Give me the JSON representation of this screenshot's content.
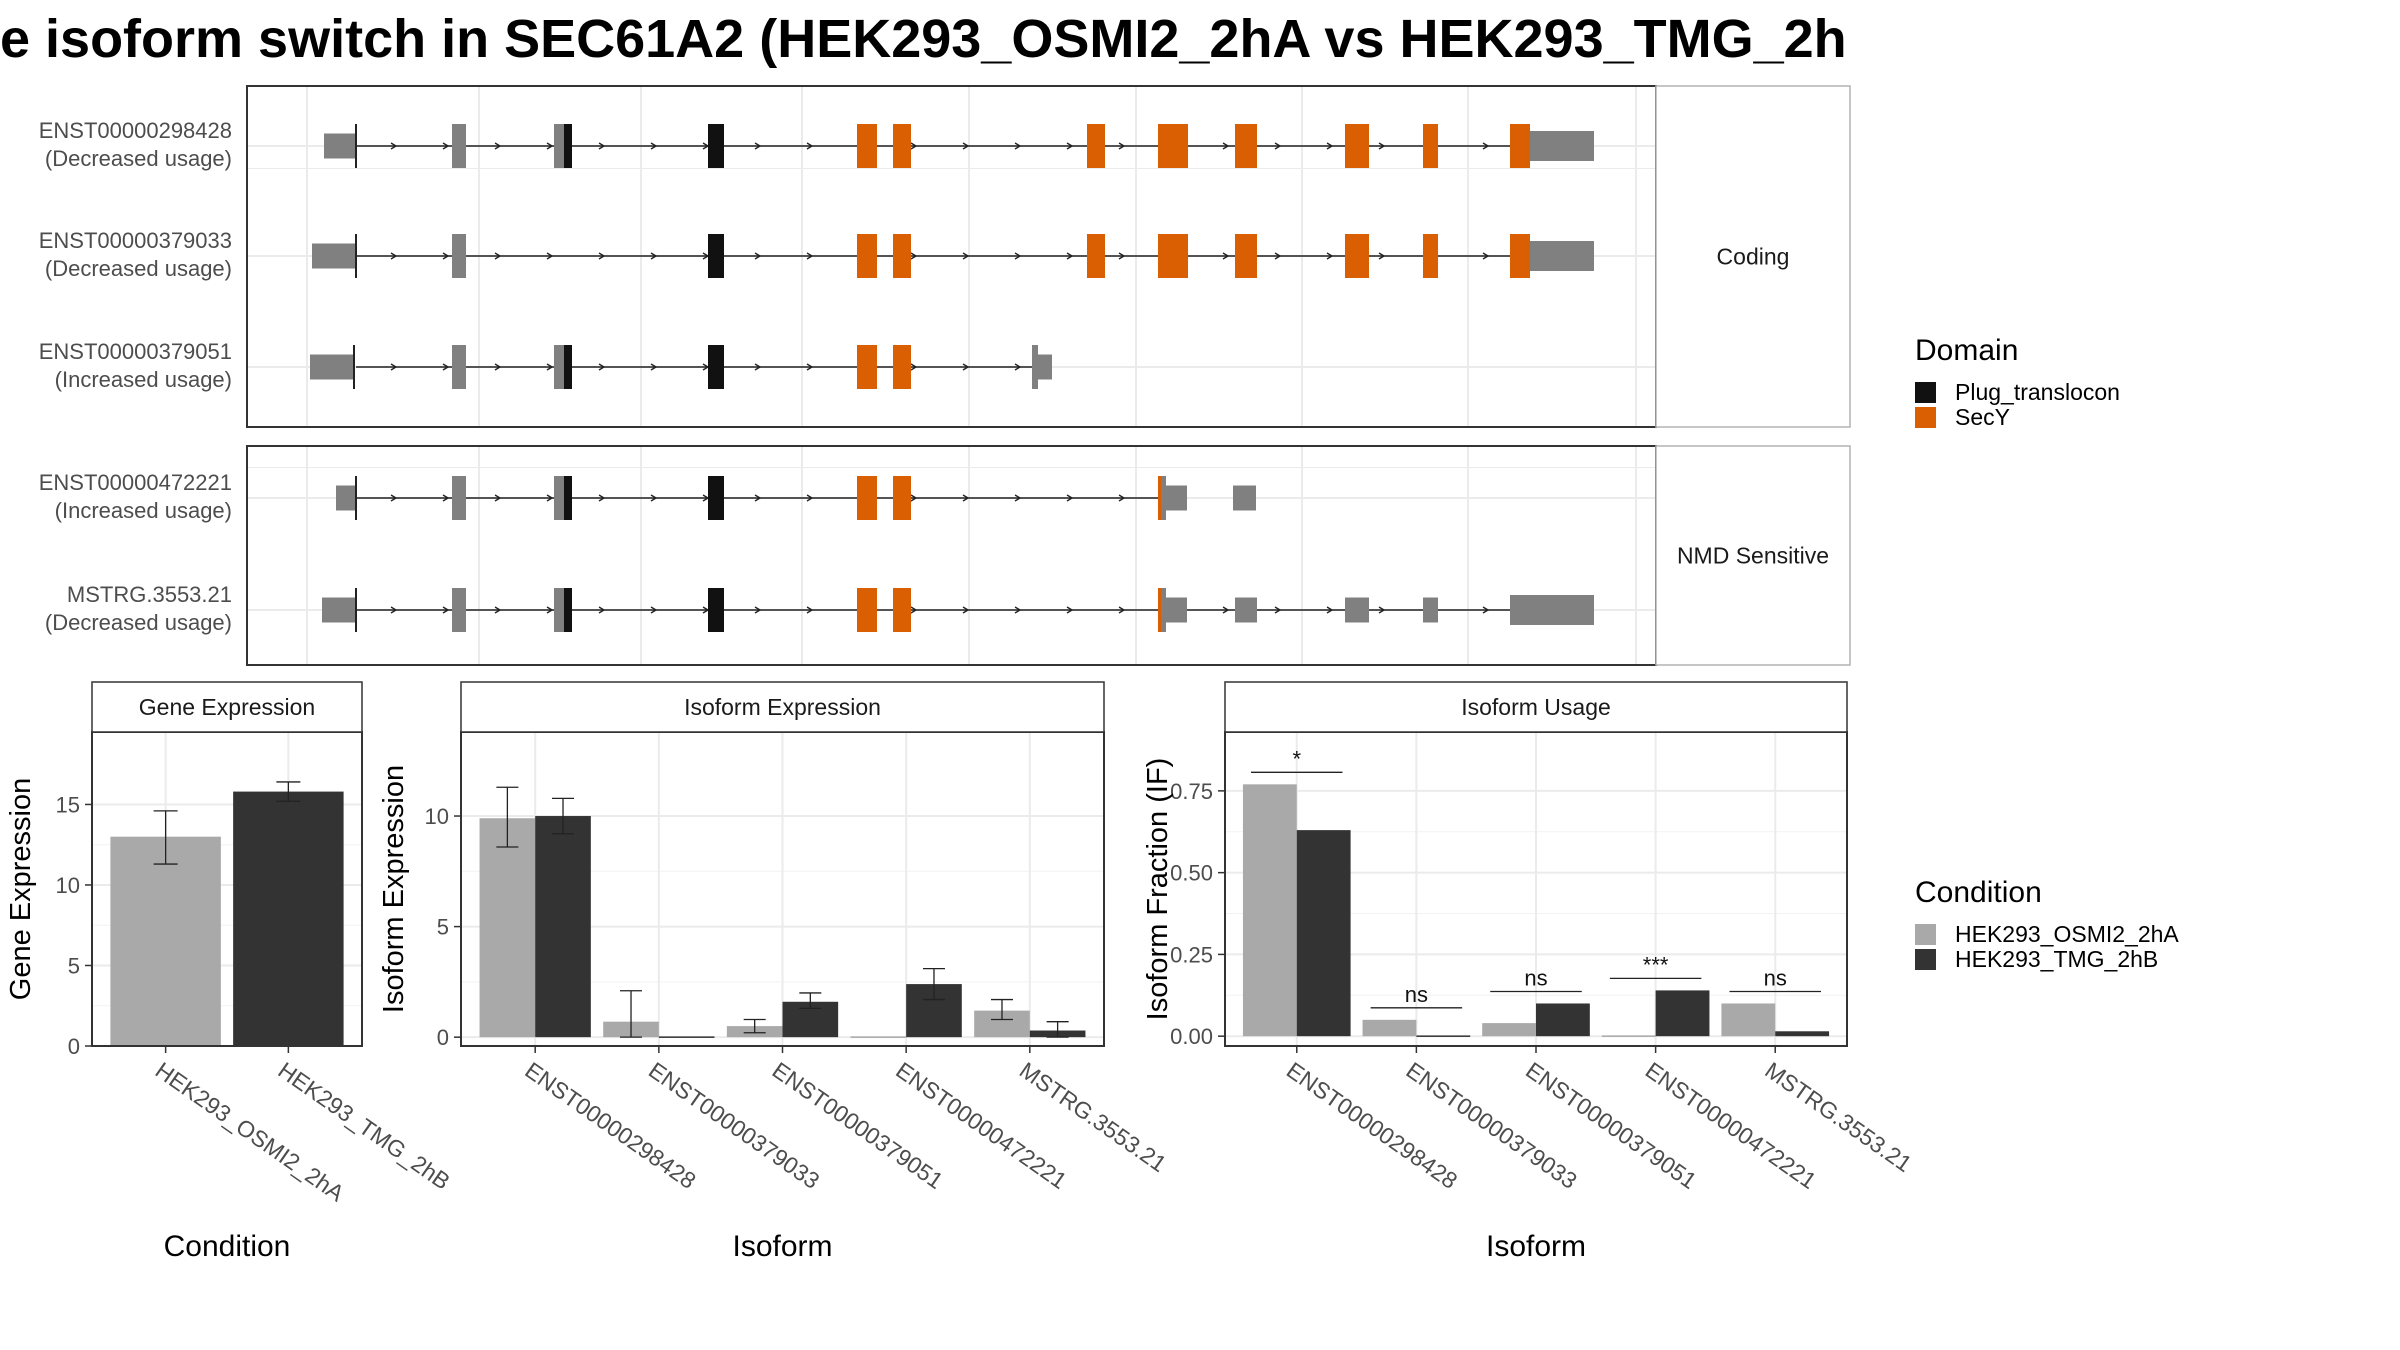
{
  "figure": {
    "title": "e isoform switch in SEC61A2 (HEK293_OSMI2_2hA vs HEK293_TMG_2h",
    "colors": {
      "plug": "#111111",
      "secy": "#d95f02",
      "noncoding": "#808080",
      "cond_a": "#a9a9a9",
      "cond_b": "#333333",
      "grid": "#ebebeb",
      "strip": "#ffffff"
    }
  },
  "transcripts": {
    "panels": [
      {
        "label": "Coding",
        "rows": [
          {
            "id": "ENST00000298428",
            "usage": "(Decreased usage)",
            "layout": "full_a",
            "tailing_exon": true
          },
          {
            "id": "ENST00000379033",
            "usage": "(Decreased usage)",
            "layout": "full_b",
            "tailing_exon": true
          },
          {
            "id": "ENST00000379051",
            "usage": "(Increased usage)",
            "layout": "short",
            "tailing_exon": false
          }
        ]
      },
      {
        "label": "NMD Sensitive",
        "rows": [
          {
            "id": "ENST00000472221",
            "usage": "(Increased usage)",
            "layout": "nmd_short"
          },
          {
            "id": "MSTRG.3553.21",
            "usage": "(Decreased usage)",
            "layout": "nmd_long"
          }
        ]
      }
    ],
    "legend": {
      "title": "Domain",
      "items": [
        {
          "label": "Plug_translocon",
          "color": "#111111"
        },
        {
          "label": "SecY",
          "color": "#d95f02"
        }
      ]
    }
  },
  "condition_legend": {
    "title": "Condition",
    "items": [
      {
        "label": "HEK293_OSMI2_2hA",
        "color": "#a9a9a9"
      },
      {
        "label": "HEK293_TMG_2hB",
        "color": "#333333"
      }
    ]
  },
  "chart_data": [
    {
      "type": "bar",
      "title": "Gene Expression",
      "xlabel": "Condition",
      "ylabel": "Gene Expression",
      "categories": [
        "HEK293_OSMI2_2hA",
        "HEK293_TMG_2hB"
      ],
      "values": [
        13.0,
        15.8
      ],
      "errors": [
        [
          11.3,
          14.6
        ],
        [
          15.2,
          16.4
        ]
      ],
      "ylim": [
        0,
        19.5
      ],
      "yticks": [
        0,
        5,
        10,
        15
      ],
      "ytick_labels": [
        "0",
        "5",
        "10",
        "15"
      ],
      "grid": true
    },
    {
      "type": "bar",
      "title": "Isoform Expression",
      "xlabel": "Isoform",
      "ylabel": "Isoform Expression",
      "categories": [
        "ENST00000298428",
        "ENST00000379033",
        "ENST00000379051",
        "ENST00000472221",
        "MSTRG.3553.21"
      ],
      "series": [
        {
          "name": "HEK293_OSMI2_2hA",
          "values": [
            9.9,
            0.7,
            0.5,
            0.0,
            1.2
          ],
          "errors": [
            [
              8.6,
              11.3
            ],
            [
              0.0,
              2.1
            ],
            [
              0.2,
              0.8
            ],
            [
              0.0,
              0.0
            ],
            [
              0.8,
              1.7
            ]
          ]
        },
        {
          "name": "HEK293_TMG_2hB",
          "values": [
            10.0,
            0.0,
            1.6,
            2.4,
            0.3
          ],
          "errors": [
            [
              9.2,
              10.8
            ],
            [
              0.0,
              0.0
            ],
            [
              1.3,
              2.0
            ],
            [
              1.7,
              3.1
            ],
            [
              0.0,
              0.7
            ]
          ]
        }
      ],
      "ylim": [
        -0.4,
        13.8
      ],
      "yticks": [
        0,
        5,
        10
      ],
      "ytick_labels": [
        "0",
        "5",
        "10"
      ],
      "grid": true
    },
    {
      "type": "bar",
      "title": "Isoform Usage",
      "xlabel": "Isoform",
      "ylabel": "Isoform Fraction (IF)",
      "categories": [
        "ENST00000298428",
        "ENST00000379033",
        "ENST00000379051",
        "ENST00000472221",
        "MSTRG.3553.21"
      ],
      "series": [
        {
          "name": "HEK293_OSMI2_2hA",
          "values": [
            0.77,
            0.05,
            0.04,
            0.0,
            0.1
          ]
        },
        {
          "name": "HEK293_TMG_2hB",
          "values": [
            0.63,
            0.0,
            0.1,
            0.14,
            0.015
          ]
        }
      ],
      "significance": [
        "*",
        "ns",
        "ns",
        "***",
        "ns"
      ],
      "ylim": [
        -0.03,
        0.93
      ],
      "yticks": [
        0,
        0.25,
        0.5,
        0.75
      ],
      "ytick_labels": [
        "0.00",
        "0.25",
        "0.50",
        "0.75"
      ],
      "grid": true
    }
  ]
}
